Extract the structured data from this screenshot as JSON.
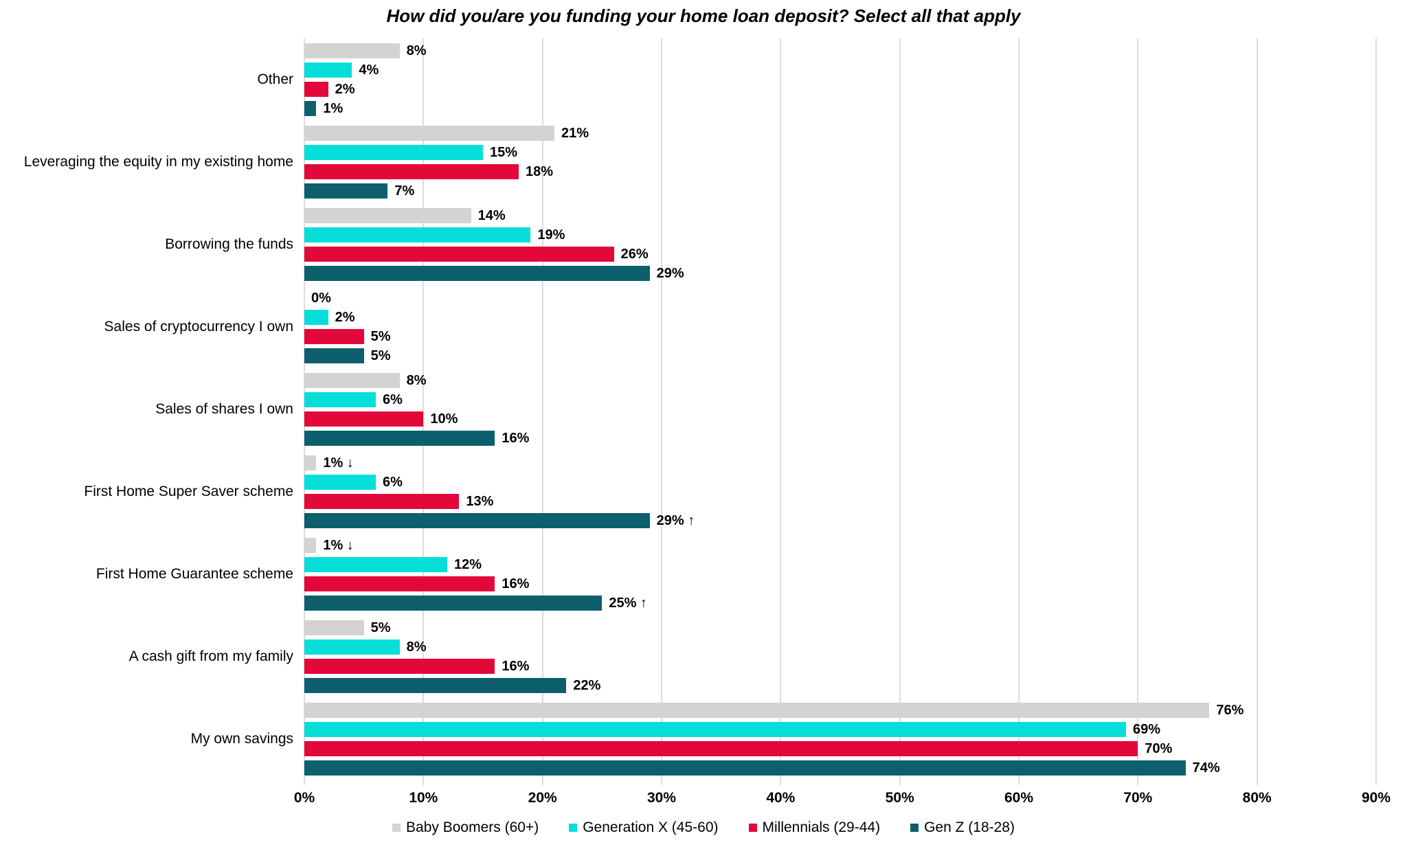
{
  "chart_data": {
    "type": "bar",
    "orientation": "horizontal",
    "title": "How did you/are you funding your home loan deposit? Select all that apply",
    "categories": [
      "Other",
      "Leveraging the equity in my existing home",
      "Borrowing the funds",
      "Sales of cryptocurrency I own",
      "Sales of shares I own",
      "First Home Super Saver scheme",
      "First Home Guarantee scheme",
      "A cash gift from my family",
      "My own savings"
    ],
    "series": [
      {
        "name": "Baby Boomers (60+)",
        "color": "#d3d3d3",
        "values": [
          8,
          21,
          14,
          0,
          8,
          1,
          1,
          5,
          76
        ],
        "labels": [
          "8%",
          "21%",
          "14%",
          "0%",
          "8%",
          "1% ↓",
          "1% ↓",
          "5%",
          "76%"
        ]
      },
      {
        "name": "Generation X (45-60)",
        "color": "#06dfd9",
        "values": [
          4,
          15,
          19,
          2,
          6,
          6,
          12,
          8,
          69
        ],
        "labels": [
          "4%",
          "15%",
          "19%",
          "2%",
          "6%",
          "6%",
          "12%",
          "8%",
          "69%"
        ]
      },
      {
        "name": "Millennials (29-44)",
        "color": "#e20839",
        "values": [
          2,
          18,
          26,
          5,
          10,
          13,
          16,
          16,
          70
        ],
        "labels": [
          "2%",
          "18%",
          "26%",
          "5%",
          "10%",
          "13%",
          "16%",
          "16%",
          "70%"
        ]
      },
      {
        "name": "Gen Z (18-28)",
        "color": "#0d5f6d",
        "values": [
          1,
          7,
          29,
          5,
          16,
          29,
          25,
          22,
          74
        ],
        "labels": [
          "1%",
          "7%",
          "29%",
          "5%",
          "16%",
          "29% ↑",
          "25% ↑",
          "22%",
          "74%"
        ]
      }
    ],
    "x_ticks": [
      "0%",
      "10%",
      "20%",
      "30%",
      "40%",
      "50%",
      "60%",
      "70%",
      "80%",
      "90%"
    ],
    "xlim": [
      0,
      90
    ],
    "grid": "vertical",
    "gridline_color": "#dcdcdc",
    "legend_position": "bottom-center",
    "value_labels": "outside-end"
  }
}
